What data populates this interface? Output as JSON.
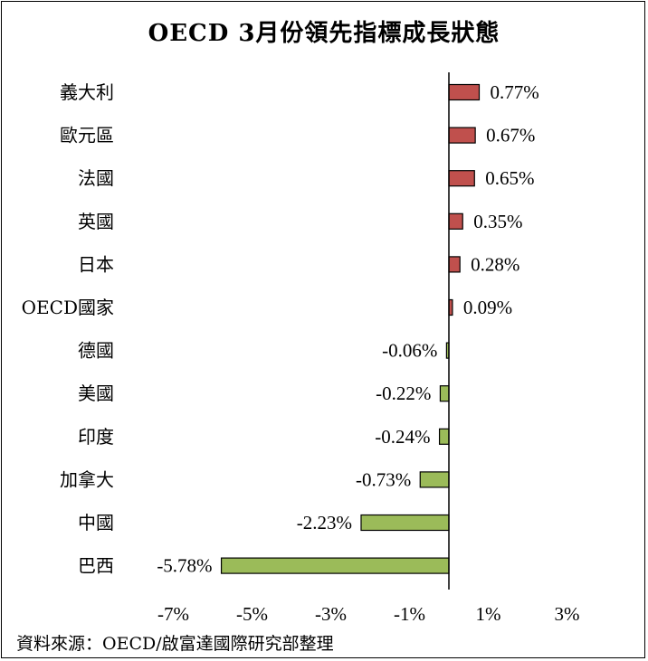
{
  "title": "OECD 3月份領先指標成長狀態",
  "source": "資料來源：OECD/啟富達國際研究部整理",
  "colors": {
    "positive": "#c0504d",
    "negative": "#9bbb59",
    "stroke": "#000000"
  },
  "chart_data": {
    "type": "bar",
    "orientation": "horizontal",
    "categories": [
      "義大利",
      "歐元區",
      "法國",
      "英國",
      "日本",
      "OECD國家",
      "德國",
      "美國",
      "印度",
      "加拿大",
      "中國",
      "巴西"
    ],
    "values": [
      0.77,
      0.67,
      0.65,
      0.35,
      0.28,
      0.09,
      -0.06,
      -0.22,
      -0.24,
      -0.73,
      -2.23,
      -5.78
    ],
    "value_labels": [
      "0.77%",
      "0.67%",
      "0.65%",
      "0.35%",
      "0.28%",
      "0.09%",
      "-0.06%",
      "-0.22%",
      "-0.24%",
      "-0.73%",
      "-2.23%",
      "-5.78%"
    ],
    "x_ticks": [
      "-7%",
      "-5%",
      "-3%",
      "-1%",
      "1%",
      "3%"
    ],
    "x_tick_values": [
      -7,
      -5,
      -3,
      -1,
      1,
      3
    ],
    "xlim": [
      -8,
      4
    ],
    "grid": false,
    "legend": "none"
  }
}
